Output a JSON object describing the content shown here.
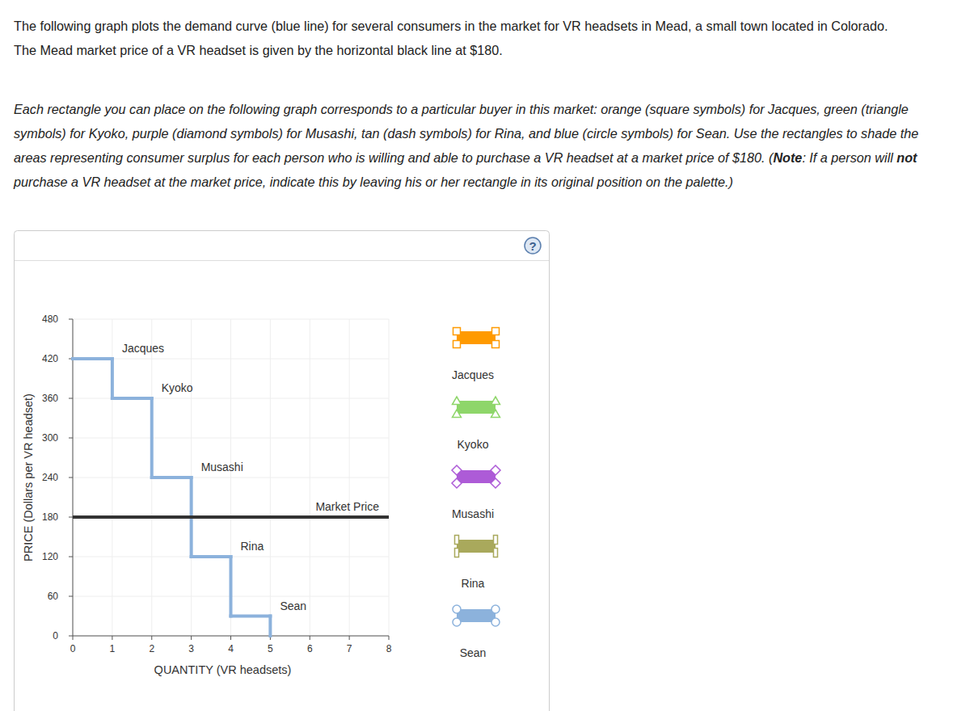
{
  "header": {
    "paragraphs": [
      {
        "italic": false,
        "runs": [
          {
            "text": "The following graph plots the demand curve (blue line) for several consumers in the market for VR headsets in Mead, a small town located in Colorado.",
            "bold": false
          }
        ]
      },
      {
        "italic": false,
        "runs": [
          {
            "text": "The Mead market price of a VR headset is given by the horizontal black line at $180.",
            "bold": false
          }
        ]
      },
      {
        "italic": true,
        "runs": [
          {
            "text": "Each rectangle you can place on the following graph corresponds to a particular buyer in this market: orange (square symbols) for Jacques, green (triangle symbols) for Kyoko, purple (diamond symbols) for Musashi, tan (dash symbols) for Rina, and blue (circle symbols) for Sean. Use the rectangles to shade the areas representing consumer surplus for each person who is willing and able to purchase a VR headset at a market price of $180. (",
            "bold": false
          },
          {
            "text": "Note",
            "bold": true
          },
          {
            "text": ": If a person will ",
            "bold": false
          },
          {
            "text": "not",
            "bold": true
          },
          {
            "text": " purchase a VR headset at the market price, indicate this by leaving his or her rectangle in its original position on the palette.)",
            "bold": false
          }
        ]
      }
    ]
  },
  "chart_data": {
    "type": "step",
    "x_label": "QUANTITY (VR headsets)",
    "y_label": "PRICE (Dollars per VR headset)",
    "categories": [
      "Jacques",
      "Kyoko",
      "Musashi",
      "Rina",
      "Sean"
    ],
    "bins": [
      0,
      1,
      2,
      3,
      4,
      5
    ],
    "values": [
      420,
      360,
      240,
      120,
      30
    ],
    "color": "#8cb2dc",
    "market_price": {
      "value": 180,
      "label": "Market Price"
    },
    "xlim": [
      0,
      8
    ],
    "ylim": [
      0,
      480
    ],
    "xticks": [
      0,
      1,
      2,
      3,
      4,
      5,
      6,
      7,
      8
    ],
    "yticks": [
      0,
      60,
      120,
      180,
      240,
      300,
      360,
      420,
      480
    ],
    "grid": true
  },
  "palette": [
    {
      "label": "Jacques",
      "color": "#ff9a00",
      "marker": "square"
    },
    {
      "label": "Kyoko",
      "color": "#8ed66a",
      "marker": "triangle"
    },
    {
      "label": "Musashi",
      "color": "#ad5bd7",
      "marker": "diamond"
    },
    {
      "label": "Rina",
      "color": "#a9a95c",
      "marker": "dash"
    },
    {
      "label": "Sean",
      "color": "#8cb2dc",
      "marker": "circle"
    }
  ],
  "help_icon": "?"
}
